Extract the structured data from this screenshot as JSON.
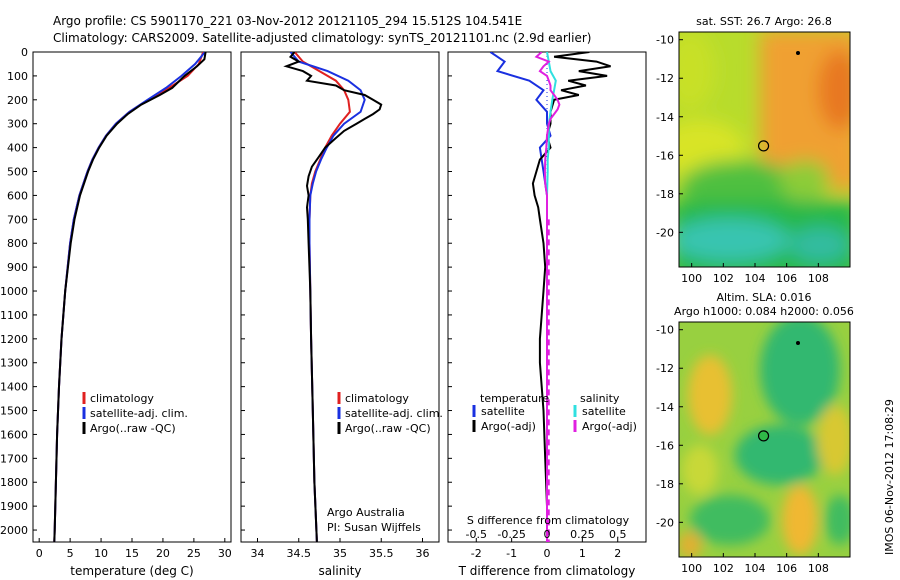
{
  "header": {
    "title_line1": "Argo profile: CS 5901170_221 03-Nov-2012 20121105_294 15.512S 104.541E",
    "title_line2": "Climatology: CARS2009. Satellite-adjusted climatology: synTS_20121101.nc (2.9d earlier)"
  },
  "map_top": {
    "title": "sat. SST: 26.7 Argo: 26.8",
    "x_ticks": [
      "100",
      "102",
      "104",
      "106",
      "108"
    ],
    "y_ticks": [
      "-10",
      "-12",
      "-14",
      "-16",
      "-18",
      "-20"
    ],
    "xlim": [
      99.2,
      110.0
    ],
    "ylim": [
      -21.8,
      -9.6
    ],
    "argo_position": {
      "lon": 104.541,
      "lat": -15.512
    },
    "colors": {
      "warm": "#f0a030",
      "mid": "#c0dc28",
      "cool": "#20b848",
      "cold": "#38c8c0"
    }
  },
  "map_bottom": {
    "title_line1": "Altim. SLA: 0.016",
    "title_line2": "Argo h1000: 0.084 h2000: 0.056",
    "x_ticks": [
      "100",
      "102",
      "104",
      "106",
      "108"
    ],
    "y_ticks": [
      "-10",
      "-12",
      "-14",
      "-16",
      "-18",
      "-20"
    ],
    "xlim": [
      99.2,
      110.0
    ],
    "ylim": [
      -21.8,
      -9.6
    ],
    "argo_position": {
      "lon": 104.541,
      "lat": -15.512
    }
  },
  "footer": {
    "stamp": "IMOS 06-Nov-2012 17:08:29",
    "argo_credit_1": "Argo Australia",
    "argo_credit_2": "PI: Susan Wijffels"
  },
  "legend": {
    "climatology": "climatology",
    "satellite_adj": "satellite-adj. clim.",
    "argo_raw": "Argo(..raw -QC)",
    "temperature_head": "temperature",
    "salinity_head": "salinity",
    "satellite": "satellite",
    "argo_adj": "Argo(-adj)"
  },
  "colors": {
    "climatology": "#e02020",
    "satellite": "#1a30e0",
    "argo": "#000000",
    "sal_satellite": "#30e0e0",
    "sal_argo": "#e020e0"
  },
  "chart_data": [
    {
      "type": "line",
      "xlabel": "temperature (deg C)",
      "ylabel": "",
      "xlim": [
        -1,
        31
      ],
      "ylim": [
        2050,
        0
      ],
      "x_ticks": [
        0,
        5,
        10,
        15,
        20,
        25,
        30
      ],
      "y_ticks": [
        0,
        100,
        200,
        300,
        400,
        500,
        600,
        700,
        800,
        900,
        1000,
        1100,
        1200,
        1300,
        1400,
        1500,
        1600,
        1700,
        1800,
        1900,
        2000
      ],
      "series": [
        {
          "name": "climatology",
          "depth": [
            0,
            50,
            100,
            150,
            200,
            250,
            300,
            350,
            400,
            450,
            500,
            600,
            700,
            800,
            1000,
            1200,
            1400,
            1600,
            1800,
            2000,
            2050
          ],
          "values": [
            26.5,
            25.8,
            24,
            21,
            17.6,
            14.6,
            12.4,
            10.8,
            9.6,
            8.6,
            7.8,
            6.5,
            5.6,
            5.0,
            4.2,
            3.6,
            3.2,
            2.9,
            2.7,
            2.5,
            2.45
          ]
        },
        {
          "name": "satellite-adj. clim.",
          "depth": [
            0,
            50,
            100,
            150,
            200,
            250,
            300,
            350,
            400,
            450,
            500,
            600,
            700,
            800,
            1000,
            1200,
            1400,
            1600,
            1800,
            2000,
            2050
          ],
          "values": [
            26.8,
            25.2,
            23.0,
            20.5,
            17.5,
            14.6,
            12.4,
            10.8,
            9.6,
            8.6,
            7.8,
            6.5,
            5.6,
            5.0,
            4.2,
            3.6,
            3.2,
            2.9,
            2.7,
            2.5,
            2.45
          ]
        },
        {
          "name": "Argo(..raw -QC)",
          "depth": [
            0,
            30,
            60,
            100,
            150,
            180,
            220,
            260,
            300,
            350,
            400,
            450,
            500,
            600,
            700,
            800,
            1000,
            1200,
            1400,
            1600,
            1800,
            2000,
            2050
          ],
          "values": [
            26.9,
            26.7,
            25.5,
            23.5,
            21.5,
            19.5,
            16.5,
            14.3,
            12.6,
            10.9,
            9.7,
            8.7,
            7.9,
            6.6,
            5.7,
            5.1,
            4.2,
            3.6,
            3.2,
            2.9,
            2.7,
            2.5,
            2.45
          ]
        }
      ]
    },
    {
      "type": "line",
      "xlabel": "salinity",
      "ylabel": "",
      "xlim": [
        33.8,
        36.2
      ],
      "ylim": [
        2050,
        0
      ],
      "x_ticks": [
        34,
        34.5,
        35,
        35.5,
        36
      ],
      "series": [
        {
          "name": "climatology",
          "depth": [
            0,
            40,
            80,
            120,
            160,
            200,
            250,
            300,
            350,
            400,
            450,
            500,
            550,
            600,
            700,
            800,
            1000,
            1200,
            1500,
            1800,
            2050
          ],
          "values": [
            34.45,
            34.55,
            34.75,
            34.95,
            35.05,
            35.1,
            35.12,
            35.0,
            34.9,
            34.82,
            34.76,
            34.7,
            34.66,
            34.64,
            34.63,
            34.63,
            34.64,
            34.65,
            34.67,
            34.69,
            34.72
          ]
        },
        {
          "name": "satellite-adj. clim.",
          "depth": [
            0,
            40,
            80,
            120,
            160,
            200,
            250,
            300,
            350,
            400,
            450,
            500,
            550,
            600,
            700,
            800,
            1000,
            1200,
            1500,
            1800,
            2050
          ],
          "values": [
            34.4,
            34.5,
            34.85,
            35.1,
            35.25,
            35.3,
            35.25,
            35.05,
            34.92,
            34.84,
            34.77,
            34.71,
            34.67,
            34.64,
            34.63,
            34.63,
            34.64,
            34.65,
            34.67,
            34.69,
            34.72
          ]
        },
        {
          "name": "Argo(..raw -QC)",
          "depth": [
            0,
            20,
            40,
            60,
            80,
            100,
            120,
            140,
            160,
            180,
            200,
            220,
            240,
            260,
            280,
            300,
            330,
            360,
            400,
            440,
            480,
            520,
            560,
            600,
            650,
            700,
            800,
            1000,
            1200,
            1500,
            1800,
            2050
          ],
          "values": [
            34.45,
            34.4,
            34.5,
            34.35,
            34.55,
            34.65,
            34.6,
            34.95,
            35.05,
            35.3,
            35.4,
            35.5,
            35.48,
            35.4,
            35.3,
            35.2,
            35.05,
            34.95,
            34.82,
            34.74,
            34.66,
            34.62,
            34.6,
            34.62,
            34.6,
            34.61,
            34.62,
            34.64,
            34.65,
            34.67,
            34.69,
            34.72
          ]
        }
      ]
    },
    {
      "type": "line",
      "xlabel": "T difference from climatology",
      "xlabel_top": "S difference from climatology",
      "xlim": [
        -2.8,
        2.8
      ],
      "ylim": [
        2050,
        0
      ],
      "x_ticks": [
        -2,
        -1,
        0,
        1,
        2
      ],
      "x_ticks_top": [
        "-0.5",
        "-0.25",
        "0",
        "0.25",
        "0.5"
      ],
      "series": [
        {
          "name": "temperature satellite",
          "depth": [
            0,
            40,
            80,
            120,
            160,
            200,
            250,
            300,
            350,
            400,
            450,
            500,
            600,
            700,
            800,
            1000,
            1200,
            1500,
            1800,
            2050
          ],
          "values": [
            -1.6,
            -1.2,
            -1.4,
            -0.5,
            -0.1,
            -0.3,
            0.0,
            0.0,
            0.1,
            -0.2,
            -0.15,
            -0.1,
            0.0,
            0.0,
            0.0,
            0.0,
            0.0,
            0.0,
            0.0,
            0.0
          ]
        },
        {
          "name": "temperature Argo(-adj)",
          "depth": [
            0,
            20,
            40,
            60,
            80,
            100,
            120,
            140,
            160,
            180,
            200,
            250,
            300,
            350,
            400,
            450,
            500,
            550,
            600,
            650,
            700,
            800,
            900,
            1000,
            1100,
            1200,
            1300,
            1500,
            1700,
            1900,
            2050
          ],
          "values": [
            1.2,
            0.2,
            1.4,
            1.8,
            0.9,
            1.7,
            0.6,
            1.1,
            0.4,
            0.9,
            0.2,
            0.1,
            0.1,
            0.0,
            0.1,
            -0.2,
            -0.3,
            -0.4,
            -0.35,
            -0.25,
            -0.2,
            -0.1,
            -0.05,
            -0.1,
            -0.15,
            -0.2,
            -0.2,
            -0.1,
            -0.05,
            0.0,
            0.0
          ]
        },
        {
          "name": "salinity satellite",
          "depth": [
            0,
            40,
            80,
            120,
            160,
            200,
            250,
            300,
            350,
            400,
            450,
            500,
            600,
            700,
            800,
            1000,
            1200,
            1500,
            1800,
            2050
          ],
          "values": [
            0.0,
            0.05,
            0.1,
            0.25,
            0.2,
            0.15,
            0.1,
            0.05,
            0.05,
            0.05,
            0.02,
            0.02,
            0.0,
            0.0,
            0.0,
            0.0,
            0.0,
            0.0,
            0.0,
            0.0
          ]
        },
        {
          "name": "salinity Argo(-adj)",
          "depth": [
            0,
            20,
            40,
            60,
            80,
            100,
            120,
            140,
            160,
            180,
            200,
            220,
            240,
            260,
            280,
            300,
            350,
            400,
            450,
            500,
            550,
            600,
            700,
            800,
            1000,
            1200,
            1500,
            1800,
            2050
          ],
          "values": [
            -0.15,
            -0.3,
            0.05,
            -0.1,
            -0.2,
            0.0,
            0.05,
            0.1,
            0.1,
            0.2,
            0.3,
            0.35,
            0.3,
            0.2,
            0.1,
            0.05,
            0.0,
            -0.02,
            -0.05,
            -0.06,
            -0.05,
            0.0,
            0.0,
            0.0,
            0.0,
            0.0,
            0.0,
            0.0,
            0.0
          ]
        }
      ]
    }
  ]
}
